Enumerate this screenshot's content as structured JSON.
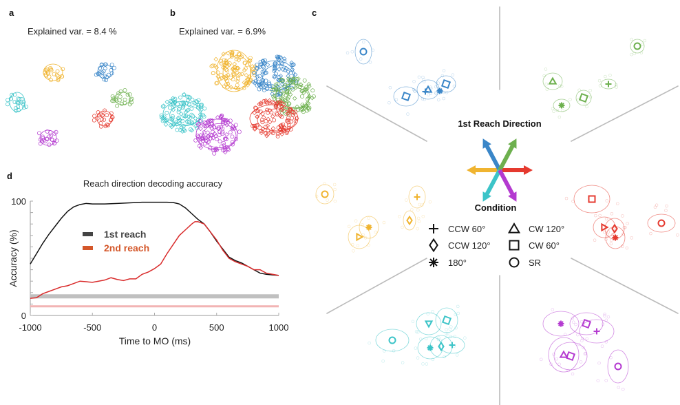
{
  "panels": {
    "a": {
      "letter": "a",
      "title": "Explained var. = 8.4 %"
    },
    "b": {
      "letter": "b",
      "title": "Explained var. = 6.9%"
    },
    "c": {
      "letter": "c",
      "direction_title": "1st Reach Direction",
      "condition_title": "Condition",
      "conditions": [
        {
          "marker": "plus",
          "label": "CCW 60°"
        },
        {
          "marker": "diamond",
          "label": "CCW 120°"
        },
        {
          "marker": "asterisk",
          "label": "180°"
        },
        {
          "marker": "triangle",
          "label": "CW 120°"
        },
        {
          "marker": "square",
          "label": "CW 60°"
        },
        {
          "marker": "circle",
          "label": "SR"
        }
      ],
      "direction_colors": {
        "up-left": "#3a86c8",
        "up-right": "#6db04e",
        "left": "#f0b430",
        "right": "#e53a2f",
        "down-left": "#3cc4c8",
        "down-right": "#b43ad0"
      }
    },
    "d": {
      "letter": "d"
    }
  },
  "chart_data": [
    {
      "type": "line",
      "title": "Reach direction decoding accuracy",
      "xlabel": "Time to MO (ms)",
      "ylabel": "Accuracy (%)",
      "xlim": [
        -1000,
        1000
      ],
      "ylim": [
        0,
        100
      ],
      "xticks": [
        -1000,
        -500,
        0,
        500,
        1000
      ],
      "yticks_labeled": [
        0,
        100
      ],
      "ytick_step": 10,
      "legend": {
        "placement": "center-left",
        "entries": [
          {
            "name": "1st reach",
            "color": "#444444"
          },
          {
            "name": "2nd reach",
            "color": "#d4572a"
          }
        ]
      },
      "series": [
        {
          "name": "1st reach",
          "color": "#111111",
          "x": [
            -1000,
            -950,
            -900,
            -850,
            -800,
            -750,
            -700,
            -650,
            -600,
            -550,
            -500,
            -400,
            -300,
            -200,
            -100,
            0,
            100,
            150,
            200,
            250,
            300,
            350,
            400,
            450,
            500,
            550,
            600,
            650,
            700,
            750,
            800,
            850,
            900,
            950,
            1000
          ],
          "y": [
            45,
            54,
            63,
            71,
            78,
            85,
            91,
            95,
            97,
            98,
            97.5,
            97.5,
            98,
            98.5,
            99,
            99,
            99,
            98.8,
            97.5,
            94,
            89,
            84,
            80,
            73,
            65,
            58,
            51,
            48,
            46,
            43,
            40,
            37,
            36,
            35.5,
            35
          ]
        },
        {
          "name": "2nd reach",
          "color": "#d92b2b",
          "x": [
            -1000,
            -950,
            -900,
            -850,
            -800,
            -750,
            -700,
            -650,
            -600,
            -550,
            -500,
            -450,
            -400,
            -350,
            -300,
            -250,
            -200,
            -150,
            -100,
            -50,
            0,
            50,
            100,
            150,
            200,
            250,
            300,
            325,
            350,
            400,
            450,
            500,
            550,
            600,
            650,
            700,
            750,
            800,
            850,
            900,
            950,
            1000
          ],
          "y": [
            15,
            15.5,
            19,
            21,
            23,
            25,
            26,
            28,
            30,
            29.5,
            29,
            30,
            31,
            33,
            31.5,
            30.5,
            32,
            32,
            36,
            38,
            41,
            45,
            54,
            62,
            70,
            75,
            80,
            82,
            82,
            80,
            73,
            66,
            57,
            50,
            47,
            45,
            43,
            40,
            40,
            37,
            36,
            35
          ]
        },
        {
          "name": "1st reach chance",
          "color": "#c0c0c0",
          "y_constant": 16.7
        },
        {
          "name": "2nd reach chance",
          "color": "#f2b4b4",
          "y_constant": 8
        }
      ]
    },
    {
      "type": "scatter",
      "title": "Explained var. = 8.4 %",
      "groups": [
        "up-left",
        "up-right",
        "left",
        "right",
        "down-left",
        "down-right"
      ]
    },
    {
      "type": "scatter",
      "title": "Explained var. = 6.9%",
      "groups": [
        "up-left",
        "up-right",
        "left",
        "right",
        "down-left",
        "down-right"
      ]
    }
  ]
}
